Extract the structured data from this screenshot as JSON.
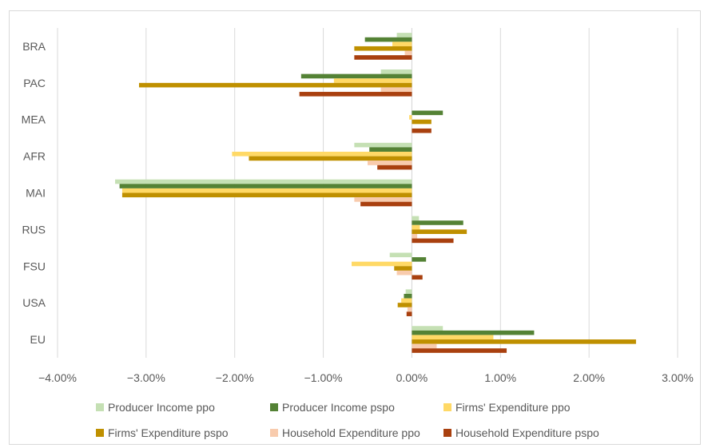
{
  "chart_data": {
    "type": "bar",
    "orientation": "horizontal",
    "categories": [
      "BRA",
      "PAC",
      "MEA",
      "AFR",
      "MAI",
      "RUS",
      "FSU",
      "USA",
      "EU"
    ],
    "x_ticks": [
      "−4.00%",
      "−3.00%",
      "−2.00%",
      "−1.00%",
      "0.00%",
      "1.00%",
      "2.00%",
      "3.00%"
    ],
    "xlim": [
      -4.0,
      3.0
    ],
    "grid": "vertical",
    "legend_position": "bottom",
    "series": [
      {
        "name": "Producer Income ppo",
        "color": "#c5e0b4",
        "values": [
          -0.17,
          -0.35,
          0.0,
          -0.65,
          -3.35,
          0.08,
          -0.25,
          -0.07,
          0.35
        ]
      },
      {
        "name": "Producer Income pspo",
        "color": "#548235",
        "values": [
          -0.53,
          -1.25,
          0.35,
          -0.48,
          -3.3,
          0.58,
          0.16,
          -0.09,
          1.38
        ]
      },
      {
        "name": "Firms' Expenditure ppo",
        "color": "#ffd966",
        "values": [
          -0.22,
          -0.88,
          -0.03,
          -2.03,
          -3.27,
          0.09,
          -0.68,
          -0.12,
          0.92
        ]
      },
      {
        "name": "Firms' Expenditure pspo",
        "color": "#bf9000",
        "values": [
          -0.65,
          -3.08,
          0.22,
          -1.84,
          -3.27,
          0.62,
          -0.2,
          -0.16,
          2.53
        ]
      },
      {
        "name": "Household Expenditure ppo",
        "color": "#f8cbad",
        "values": [
          -0.08,
          -0.35,
          0.0,
          -0.5,
          -0.65,
          0.06,
          -0.17,
          -0.05,
          0.28
        ]
      },
      {
        "name": "Household Expenditure pspo",
        "color": "#a9400f",
        "values": [
          -0.65,
          -1.27,
          0.22,
          -0.39,
          -0.58,
          0.47,
          0.12,
          -0.06,
          1.07
        ]
      }
    ]
  }
}
